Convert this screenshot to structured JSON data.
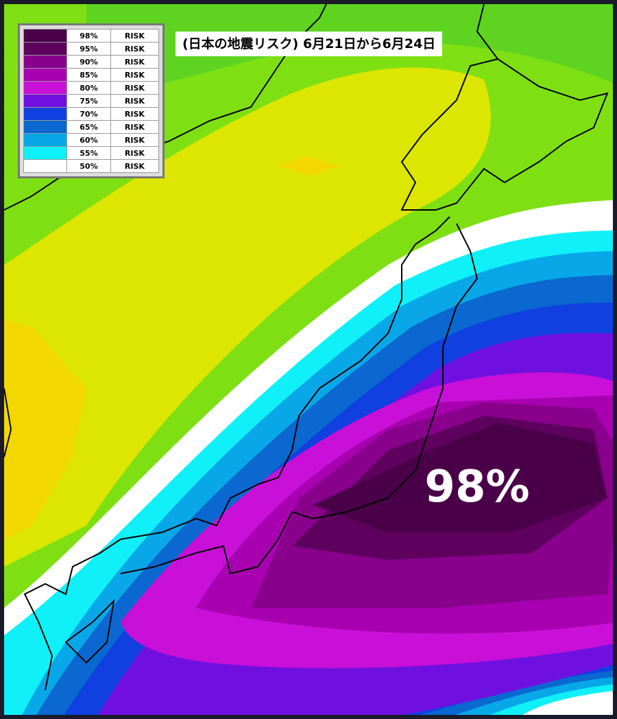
{
  "title": "(日本の地震リスク) 6月21日から6月24日",
  "legend": [
    {
      "label": "98%",
      "risk": "RISK",
      "color": "#4a0048"
    },
    {
      "label": "95%",
      "risk": "RISK",
      "color": "#5e005e"
    },
    {
      "label": "90%",
      "risk": "RISK",
      "color": "#88008c"
    },
    {
      "label": "85%",
      "risk": "RISK",
      "color": "#a800b0"
    },
    {
      "label": "80%",
      "risk": "RISK",
      "color": "#c810d8"
    },
    {
      "label": "75%",
      "risk": "RISK",
      "color": "#7010e0"
    },
    {
      "label": "70%",
      "risk": "RISK",
      "color": "#1040e0"
    },
    {
      "label": "65%",
      "risk": "RISK",
      "color": "#0a68d0"
    },
    {
      "label": "60%",
      "risk": "RISK",
      "color": "#08a8e8"
    },
    {
      "label": "55%",
      "risk": "RISK",
      "color": "#10f0f8"
    },
    {
      "label": "50%",
      "risk": "RISK",
      "color": "#ffffff"
    }
  ],
  "map_label": "98%"
}
